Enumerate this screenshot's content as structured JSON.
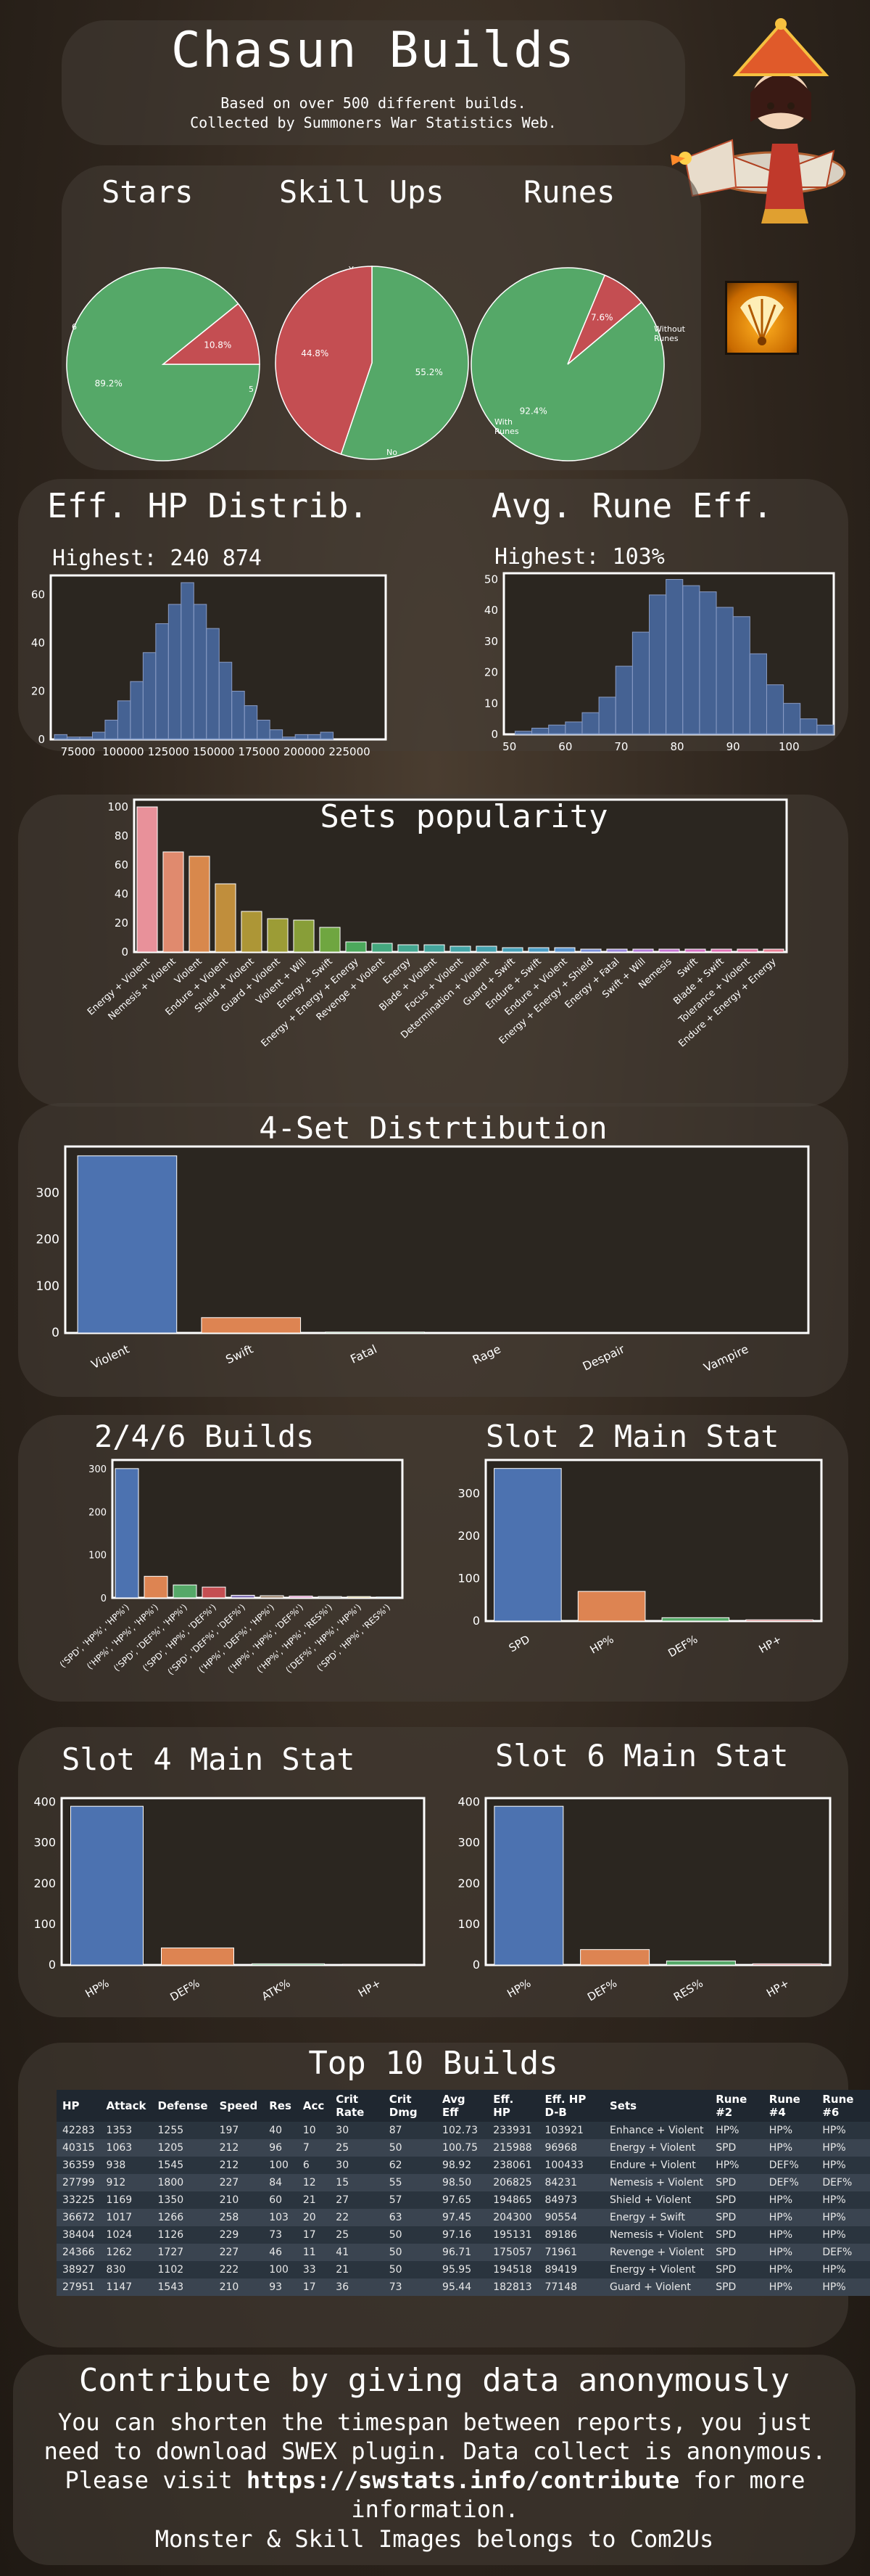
{
  "header": {
    "title": "Chasun Builds",
    "subtitle_1": "Based on over 500 different builds.",
    "subtitle_2": "Collected by Summoners War Statistics Web."
  },
  "sections": {
    "stars": "Stars",
    "skillups": "Skill Ups",
    "runes": "Runes",
    "ehp": "Eff. HP Distrib.",
    "ehp_highest": "Highest: 240 874",
    "runeeff": "Avg. Rune Eff.",
    "runeeff_highest": "Highest: 103%",
    "sets": "Sets popularity",
    "fourset": "4-Set Distrtibution",
    "builds246": "2/4/6 Builds",
    "slot2": "Slot 2 Main Stat",
    "slot4": "Slot 4 Main Stat",
    "slot6": "Slot 6 Main Stat",
    "top10": "Top 10 Builds"
  },
  "colors": {
    "green": "#55a868",
    "red": "#c44e52",
    "blue": "#4c72b0",
    "orange": "#dd8452",
    "accent_orange": "#e8a21a"
  },
  "icons": {
    "monster": "chasun-portrait-icon",
    "skill": "skill-fan-icon"
  },
  "chart_data": [
    {
      "id": "stars",
      "type": "pie",
      "labels": [
        "6",
        "5"
      ],
      "values": [
        89.2,
        10.8
      ],
      "value_labels": [
        "89.2%",
        "10.8%"
      ],
      "colors": [
        "#55a868",
        "#c44e52"
      ]
    },
    {
      "id": "skillups",
      "type": "pie",
      "labels": [
        "Yes",
        "No"
      ],
      "values": [
        55.2,
        44.8
      ],
      "value_labels": [
        "55.2%",
        "44.8%"
      ],
      "colors": [
        "#55a868",
        "#c44e52"
      ]
    },
    {
      "id": "runes",
      "type": "pie",
      "labels": [
        "With Runes",
        "Without Runes"
      ],
      "values": [
        92.4,
        7.6
      ],
      "value_labels": [
        "92.4%",
        "7.6%"
      ],
      "colors": [
        "#55a868",
        "#c44e52"
      ]
    },
    {
      "id": "ehp",
      "type": "bar",
      "x_start": 62000,
      "bin_width": 7000,
      "values": [
        2,
        1,
        1,
        3,
        8,
        16,
        24,
        36,
        48,
        56,
        65,
        56,
        46,
        32,
        20,
        14,
        8,
        4,
        1,
        2,
        2,
        3
      ],
      "xticks": [
        75000,
        100000,
        125000,
        150000,
        175000,
        200000,
        225000
      ],
      "xtick_labels": [
        "75000",
        "100000",
        "125000",
        "150000",
        "175000",
        "200000",
        "225000"
      ],
      "xlim": [
        60000,
        245000
      ],
      "ylim": [
        0,
        68
      ],
      "yticks": [
        0,
        20,
        40,
        60
      ]
    },
    {
      "id": "runeeff",
      "type": "bar",
      "x_start": 51,
      "bin_width": 3,
      "values": [
        1,
        2,
        3,
        4,
        7,
        12,
        22,
        33,
        45,
        50,
        48,
        46,
        41,
        38,
        26,
        16,
        10,
        5,
        3
      ],
      "xticks": [
        50,
        60,
        70,
        80,
        90,
        100
      ],
      "xtick_labels": [
        "50",
        "60",
        "70",
        "80",
        "90",
        "100"
      ],
      "xlim": [
        49,
        108
      ],
      "ylim": [
        0,
        52
      ],
      "yticks": [
        0,
        10,
        20,
        30,
        40,
        50
      ]
    },
    {
      "id": "sets",
      "type": "bar",
      "categories": [
        "Energy + Violent",
        "Nemesis + Violent",
        "Violent",
        "Endure + Violent",
        "Shield + Violent",
        "Guard + Violent",
        "Violent + Will",
        "Energy + Swift",
        "Energy + Energy + Energy",
        "Revenge + Violent",
        "Energy",
        "Blade + Violent",
        "Focus + Violent",
        "Determination + Violent",
        "Guard + Swift",
        "Endure + Swift",
        "Endure + Violent",
        "Energy + Energy + Shield",
        "Energy + Fatal",
        "Swift + Will",
        "Nemesis",
        "Swift",
        "Blade + Swift",
        "Tolerance + Violent",
        "Endure + Energy + Energy"
      ],
      "values": [
        100,
        69,
        66,
        47,
        28,
        23,
        22,
        17,
        7,
        6,
        5,
        5,
        4,
        4,
        3,
        3,
        3,
        2,
        2,
        2,
        2,
        2,
        2,
        2,
        2
      ],
      "colors": [
        "#e8919a",
        "#e08a6e",
        "#d8884c",
        "#c08e3c",
        "#ad9636",
        "#9c9c36",
        "#889e38",
        "#6fa640",
        "#4ca85c",
        "#44a77e",
        "#44a690",
        "#44a59c",
        "#44a4a6",
        "#45a2ae",
        "#46a0b8",
        "#4a9cc4",
        "#5c97d0",
        "#7a8fd8",
        "#9a86dc",
        "#b47cda",
        "#c674d2",
        "#d670c4",
        "#e070b4",
        "#e676a4",
        "#e87e96"
      ],
      "ylim": [
        0,
        105
      ],
      "yticks": [
        0,
        20,
        40,
        60,
        80,
        100
      ]
    },
    {
      "id": "fourset",
      "type": "bar",
      "categories": [
        "Violent",
        "Swift",
        "Fatal",
        "Rage",
        "Despair",
        "Vampire"
      ],
      "values": [
        380,
        33,
        2,
        1,
        0,
        0
      ],
      "colors": [
        "#4c72b0",
        "#dd8452",
        "#55a868",
        "#c44e52",
        "#8172b3",
        "#937860"
      ],
      "ylim": [
        0,
        400
      ],
      "yticks": [
        0,
        100,
        200,
        300
      ]
    },
    {
      "id": "builds246",
      "type": "bar",
      "categories": [
        "('SPD', 'HP%', 'HP%')",
        "('HP%', 'HP%', 'HP%')",
        "('SPD', 'DEF%', 'HP%')",
        "('SPD', 'HP%', 'DEF%')",
        "('SPD', 'DEF%', 'DEF%')",
        "('HP%', 'DEF%', 'HP%')",
        "('HP%', 'HP%', 'DEF%')",
        "('HP%', 'HP%', 'RES%')",
        "('DEF%', 'HP%', 'HP%')",
        "('SPD', 'HP%', 'RES%')"
      ],
      "values": [
        300,
        50,
        30,
        25,
        6,
        5,
        4,
        3,
        3,
        2
      ],
      "colors": [
        "#4c72b0",
        "#dd8452",
        "#55a868",
        "#c44e52",
        "#8172b3",
        "#937860",
        "#da8bc3",
        "#8c8c8c",
        "#ccb974",
        "#64b5cd"
      ],
      "ylim": [
        0,
        320
      ],
      "yticks": [
        0,
        100,
        200,
        300
      ]
    },
    {
      "id": "slot2",
      "type": "bar",
      "categories": [
        "SPD",
        "HP%",
        "DEF%",
        "HP+"
      ],
      "values": [
        360,
        70,
        8,
        3
      ],
      "colors": [
        "#4c72b0",
        "#dd8452",
        "#55a868",
        "#c44e52"
      ],
      "ylim": [
        0,
        380
      ],
      "yticks": [
        0,
        100,
        200,
        300
      ]
    },
    {
      "id": "slot4",
      "type": "bar",
      "categories": [
        "HP%",
        "DEF%",
        "ATK%",
        "HP+"
      ],
      "values": [
        390,
        42,
        3,
        2
      ],
      "colors": [
        "#4c72b0",
        "#dd8452",
        "#55a868",
        "#c44e52"
      ],
      "ylim": [
        0,
        410
      ],
      "yticks": [
        0,
        100,
        200,
        300,
        400
      ]
    },
    {
      "id": "slot6",
      "type": "bar",
      "categories": [
        "HP%",
        "DEF%",
        "RES%",
        "HP+"
      ],
      "values": [
        390,
        38,
        10,
        3
      ],
      "colors": [
        "#4c72b0",
        "#dd8452",
        "#55a868",
        "#c44e52"
      ],
      "ylim": [
        0,
        410
      ],
      "yticks": [
        0,
        100,
        200,
        300,
        400
      ]
    },
    {
      "id": "top10",
      "type": "table",
      "columns": [
        "HP",
        "Attack",
        "Defense",
        "Speed",
        "Res",
        "Acc",
        "Crit Rate",
        "Crit Dmg",
        "Avg Eff",
        "Eff. HP",
        "Eff. HP D-B",
        "Sets",
        "Rune #2",
        "Rune #4",
        "Rune #6"
      ],
      "rows": [
        [
          "42283",
          "1353",
          "1255",
          "197",
          "40",
          "10",
          "30",
          "87",
          "102.73",
          "233931",
          "103921",
          "Enhance + Violent",
          "HP%",
          "HP%",
          "HP%"
        ],
        [
          "40315",
          "1063",
          "1205",
          "212",
          "96",
          "7",
          "25",
          "50",
          "100.75",
          "215988",
          "96968",
          "Energy + Violent",
          "SPD",
          "HP%",
          "HP%"
        ],
        [
          "36359",
          "938",
          "1545",
          "212",
          "100",
          "6",
          "30",
          "62",
          "98.92",
          "238061",
          "100433",
          "Endure + Violent",
          "HP%",
          "DEF%",
          "HP%"
        ],
        [
          "27799",
          "912",
          "1800",
          "227",
          "84",
          "12",
          "15",
          "55",
          "98.50",
          "206825",
          "84231",
          "Nemesis + Violent",
          "SPD",
          "DEF%",
          "DEF%"
        ],
        [
          "33225",
          "1169",
          "1350",
          "210",
          "60",
          "21",
          "27",
          "57",
          "97.65",
          "194865",
          "84973",
          "Shield + Violent",
          "SPD",
          "HP%",
          "HP%"
        ],
        [
          "36672",
          "1017",
          "1266",
          "258",
          "103",
          "20",
          "22",
          "63",
          "97.45",
          "204300",
          "90554",
          "Energy + Swift",
          "SPD",
          "HP%",
          "HP%"
        ],
        [
          "38404",
          "1024",
          "1126",
          "229",
          "73",
          "17",
          "25",
          "50",
          "97.16",
          "195131",
          "89186",
          "Nemesis + Violent",
          "SPD",
          "HP%",
          "HP%"
        ],
        [
          "24366",
          "1262",
          "1727",
          "227",
          "46",
          "11",
          "41",
          "50",
          "96.71",
          "175057",
          "71961",
          "Revenge + Violent",
          "SPD",
          "HP%",
          "DEF%"
        ],
        [
          "38927",
          "830",
          "1102",
          "222",
          "100",
          "33",
          "21",
          "50",
          "95.95",
          "194518",
          "89419",
          "Energy + Violent",
          "SPD",
          "HP%",
          "HP%"
        ],
        [
          "27951",
          "1147",
          "1543",
          "210",
          "93",
          "17",
          "36",
          "73",
          "95.44",
          "182813",
          "77148",
          "Guard + Violent",
          "SPD",
          "HP%",
          "HP%"
        ]
      ]
    }
  ],
  "footer": {
    "heading": "Contribute by giving data anonymously",
    "text_1": "You can shorten the timespan between reports, you just need to download SWEX plugin. Data collect is anonymous. Please visit ",
    "link": "https://swstats.info/contribute",
    "text_2": " for more information.",
    "credits": "Monster & Skill Images belongs to Com2Us"
  }
}
